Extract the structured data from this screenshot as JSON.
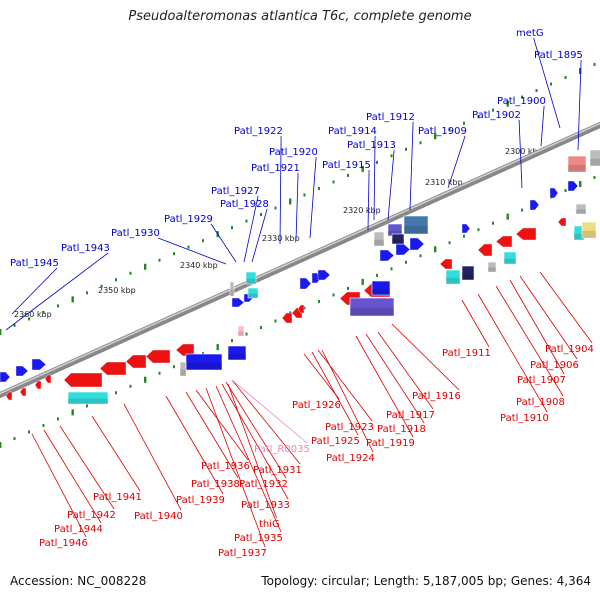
{
  "title": "Pseudoalteromonas atlantica T6c, complete genome",
  "accession": "Accession: NC_008228",
  "summary": "Topology: circular; Length: 5,187,005 bp; Genes: 4,364",
  "colors": {
    "forward_label": "#0000cc",
    "reverse_label": "#dd0000",
    "rna_label": "#ee88bb",
    "backbone": "#888888",
    "ticks": "#228822",
    "forward_gene": "#1a1aee",
    "reverse_gene": "#ee1111",
    "cog_purple": "#6655cc",
    "cog_cyan": "#33dddd",
    "cog_navy": "#222266",
    "cog_pink": "#ee8888",
    "cog_gray": "#bbbbbb",
    "cog_steel": "#4477aa",
    "cog_yellow": "#eedd88",
    "cog_light_pink": "#ffbbcc"
  },
  "kbp_labels": [
    "2300 kbp",
    "2310 kbp",
    "2320 kbp",
    "2330 kbp",
    "2340 kbp",
    "2350 kbp",
    "2360 kbp"
  ],
  "forward_labels": [
    "metG",
    "Patl_1895",
    "Patl_1900",
    "Patl_1902",
    "Patl_1909",
    "Patl_1912",
    "Patl_1913",
    "Patl_1914",
    "Patl_1915",
    "Patl_1920",
    "Patl_1921",
    "Patl_1922",
    "Patl_1927",
    "Patl_1928",
    "Patl_1929",
    "Patl_1930",
    "Patl_1943",
    "Patl_1945"
  ],
  "reverse_labels": [
    "Patl_1904",
    "Patl_1906",
    "Patl_1907",
    "Patl_1908",
    "Patl_1910",
    "Patl_1911",
    "Patl_1916",
    "Patl_1917",
    "Patl_1918",
    "Patl_1919",
    "Patl_1924",
    "Patl_1925",
    "Patl_1923",
    "Patl_1926",
    "Patl_1931",
    "Patl_1932",
    "Patl_1933",
    "Patl_1935",
    "thiG",
    "Patl_1937",
    "Patl_1936",
    "Patl_1938",
    "Patl_1939",
    "Patl_1940",
    "Patl_1941",
    "Patl_1942",
    "Patl_1944",
    "Patl_1946"
  ],
  "rna_labels": [
    "Patl_R0035"
  ]
}
